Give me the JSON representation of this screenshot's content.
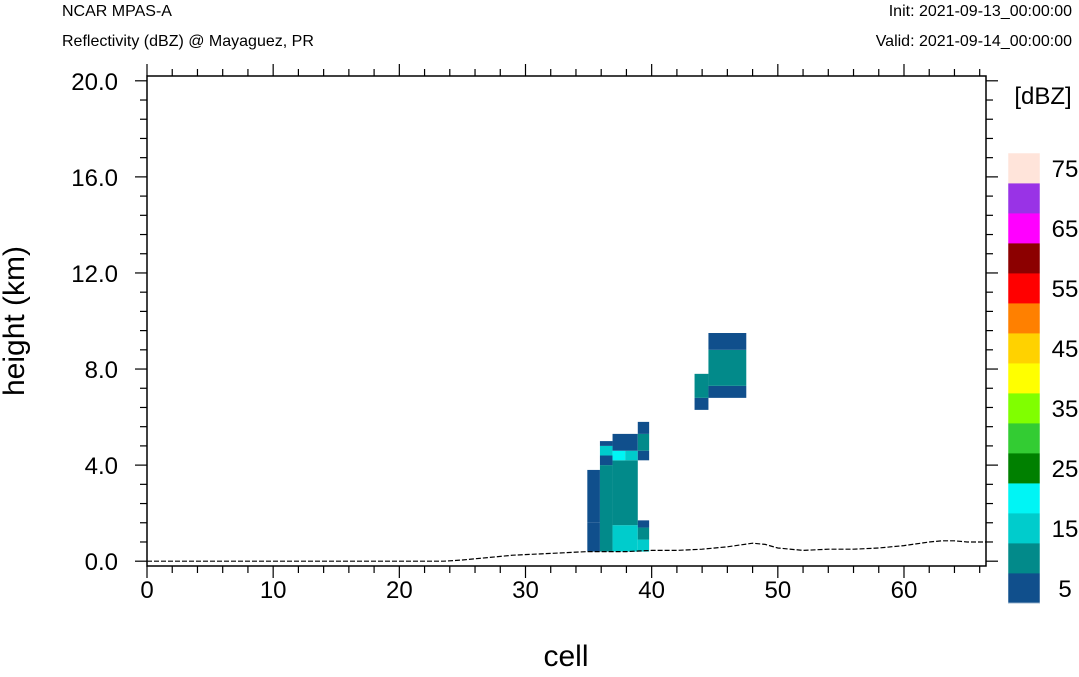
{
  "header": {
    "left_title": "NCAR MPAS-A",
    "left_subtitle": "Reflectivity (dBZ) @ Mayaguez, PR",
    "init": "Init: 2021-09-13_00:00:00",
    "valid": "Valid: 2021-09-14_00:00:00"
  },
  "chart_data": {
    "type": "heatmap",
    "title": "Reflectivity (dBZ) @ Mayaguez, PR",
    "xlabel": "cell",
    "ylabel": "height (km)",
    "xlim": [
      0,
      66.5
    ],
    "ylim": [
      -0.2,
      20.2
    ],
    "xticks": [
      0,
      10,
      20,
      30,
      40,
      50,
      60
    ],
    "yticks": [
      0.0,
      4.0,
      8.0,
      12.0,
      16.0,
      20.0
    ],
    "x_tick_labels": [
      "0",
      "10",
      "20",
      "30",
      "40",
      "50",
      "60"
    ],
    "y_tick_labels": [
      "0.0",
      "4.0",
      "8.0",
      "12.0",
      "16.0",
      "20.0"
    ],
    "colorbar": {
      "units": "[dBZ]",
      "labels": [
        "5",
        "15",
        "25",
        "35",
        "45",
        "55",
        "65",
        "75"
      ],
      "levels": [
        5,
        10,
        15,
        20,
        25,
        30,
        35,
        40,
        45,
        50,
        55,
        60,
        65,
        70,
        75
      ],
      "colors": [
        "#104F8C",
        "#028A8A",
        "#00CCCC",
        "#00F5F5",
        "#008000",
        "#33CC33",
        "#80FF00",
        "#FFFF00",
        "#FFD200",
        "#FF8000",
        "#FF0000",
        "#8C0000",
        "#FF00FF",
        "#9933E6",
        "#FFE4DA"
      ]
    },
    "cells": [
      {
        "x0": 34.9,
        "x1": 35.9,
        "y0": 0.4,
        "y1": 1.6,
        "dbz": 5
      },
      {
        "x0": 34.9,
        "x1": 35.9,
        "y0": 1.6,
        "y1": 3.8,
        "dbz": 5
      },
      {
        "x0": 35.9,
        "x1": 36.9,
        "y0": 0.4,
        "y1": 4.0,
        "dbz": 10
      },
      {
        "x0": 35.9,
        "x1": 36.9,
        "y0": 4.0,
        "y1": 4.4,
        "dbz": 5
      },
      {
        "x0": 35.9,
        "x1": 36.9,
        "y0": 4.4,
        "y1": 4.8,
        "dbz": 15
      },
      {
        "x0": 35.9,
        "x1": 36.9,
        "y0": 4.8,
        "y1": 5.0,
        "dbz": 5
      },
      {
        "x0": 36.9,
        "x1": 38.9,
        "y0": 0.4,
        "y1": 1.5,
        "dbz": 15
      },
      {
        "x0": 36.9,
        "x1": 38.9,
        "y0": 1.5,
        "y1": 4.2,
        "dbz": 10
      },
      {
        "x0": 36.9,
        "x1": 37.9,
        "y0": 4.2,
        "y1": 4.6,
        "dbz": 20
      },
      {
        "x0": 37.9,
        "x1": 38.9,
        "y0": 4.2,
        "y1": 4.6,
        "dbz": 15
      },
      {
        "x0": 36.9,
        "x1": 38.9,
        "y0": 4.6,
        "y1": 5.3,
        "dbz": 5
      },
      {
        "x0": 38.9,
        "x1": 39.8,
        "y0": 0.4,
        "y1": 0.9,
        "dbz": 15
      },
      {
        "x0": 38.9,
        "x1": 39.8,
        "y0": 0.9,
        "y1": 1.4,
        "dbz": 10
      },
      {
        "x0": 38.9,
        "x1": 39.8,
        "y0": 1.4,
        "y1": 1.7,
        "dbz": 5
      },
      {
        "x0": 38.9,
        "x1": 39.8,
        "y0": 4.2,
        "y1": 4.6,
        "dbz": 5
      },
      {
        "x0": 38.9,
        "x1": 39.8,
        "y0": 4.6,
        "y1": 5.3,
        "dbz": 10
      },
      {
        "x0": 38.9,
        "x1": 39.8,
        "y0": 5.3,
        "y1": 5.8,
        "dbz": 5
      },
      {
        "x0": 43.4,
        "x1": 44.5,
        "y0": 6.3,
        "y1": 6.8,
        "dbz": 5
      },
      {
        "x0": 43.4,
        "x1": 44.5,
        "y0": 6.8,
        "y1": 7.8,
        "dbz": 10
      },
      {
        "x0": 44.5,
        "x1": 47.5,
        "y0": 6.8,
        "y1": 7.3,
        "dbz": 5
      },
      {
        "x0": 44.5,
        "x1": 47.5,
        "y0": 7.3,
        "y1": 8.8,
        "dbz": 10
      },
      {
        "x0": 44.5,
        "x1": 47.5,
        "y0": 8.8,
        "y1": 9.5,
        "dbz": 5
      }
    ],
    "terrain": {
      "x": [
        0,
        5,
        10,
        15,
        20,
        23.5,
        25,
        27,
        29,
        31,
        33,
        34.9,
        36,
        38,
        40,
        42,
        44,
        46,
        48,
        49,
        50,
        52,
        54,
        56,
        58,
        60,
        62,
        63,
        64,
        65,
        66.5
      ],
      "y": [
        0.0,
        0.0,
        0.0,
        0.0,
        0.0,
        0.0,
        0.05,
        0.15,
        0.25,
        0.3,
        0.35,
        0.4,
        0.4,
        0.4,
        0.45,
        0.45,
        0.5,
        0.6,
        0.75,
        0.7,
        0.55,
        0.45,
        0.5,
        0.5,
        0.55,
        0.65,
        0.8,
        0.85,
        0.85,
        0.8,
        0.8
      ]
    }
  }
}
